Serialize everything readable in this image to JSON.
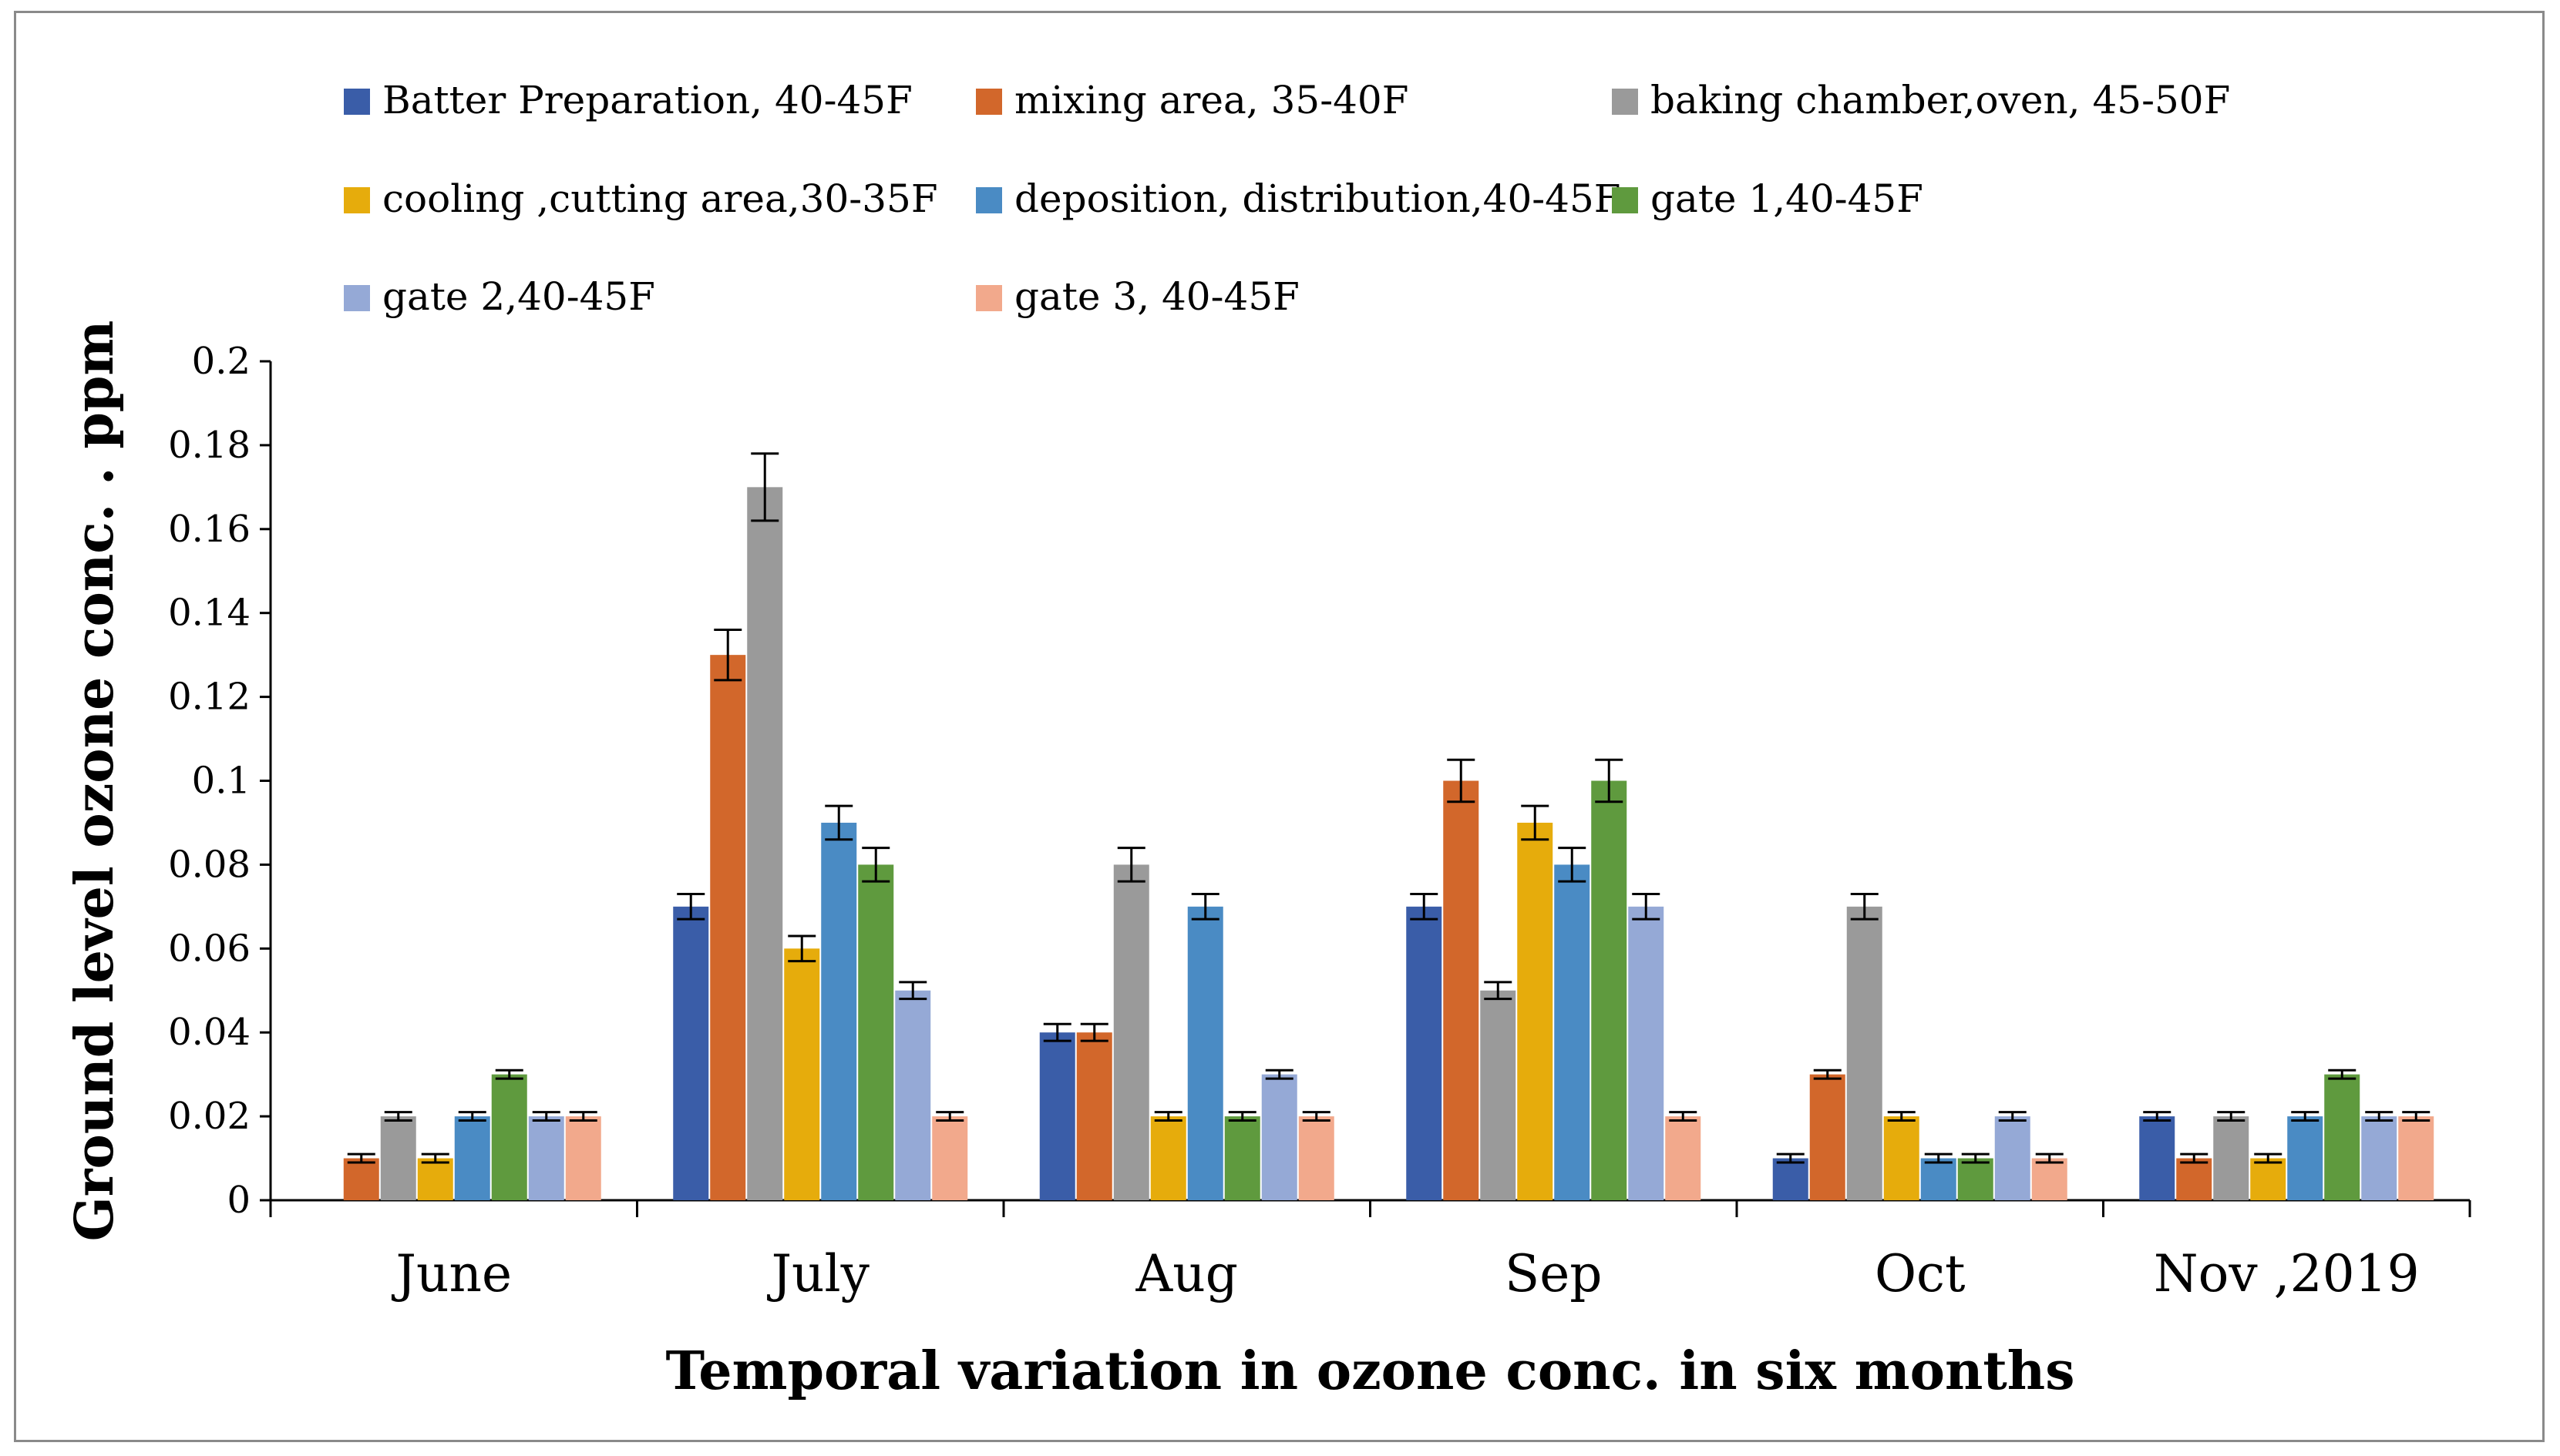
{
  "chart_data": {
    "type": "bar",
    "title": "",
    "xlabel": "Temporal variation in ozone conc. in six months",
    "ylabel": "Ground level  ozone conc. . ppm",
    "ylim": [
      0,
      0.2
    ],
    "yticks": [
      "0",
      "0.02",
      "0.04",
      "0.06",
      "0.08",
      "0.1",
      "0.12",
      "0.14",
      "0.16",
      "0.18",
      "0.2"
    ],
    "legend_position": "top",
    "categories": [
      "June",
      "July",
      "Aug",
      "Sep",
      "Oct",
      "Nov ,2019"
    ],
    "series": [
      {
        "name": "Batter Preparation,  40-45F",
        "color": "#3A5DA8",
        "values": [
          0,
          0.07,
          0.04,
          0.07,
          0.01,
          0.02
        ],
        "errors": [
          0,
          0.003,
          0.002,
          0.003,
          0.001,
          0.001
        ]
      },
      {
        "name": "mixing area, 35-40F",
        "color": "#D2672B",
        "values": [
          0.01,
          0.13,
          0.04,
          0.1,
          0.03,
          0.01
        ],
        "errors": [
          0.001,
          0.006,
          0.002,
          0.005,
          0.001,
          0.001
        ]
      },
      {
        "name": "baking chamber,oven,  45-50F",
        "color": "#9A9A9A",
        "values": [
          0.02,
          0.17,
          0.08,
          0.05,
          0.07,
          0.02
        ],
        "errors": [
          0.001,
          0.008,
          0.004,
          0.002,
          0.003,
          0.001
        ]
      },
      {
        "name": "cooling ,cutting area,30-35F",
        "color": "#E6AC0C",
        "values": [
          0.01,
          0.06,
          0.02,
          0.09,
          0.02,
          0.01
        ],
        "errors": [
          0.001,
          0.003,
          0.001,
          0.004,
          0.001,
          0.001
        ]
      },
      {
        "name": "deposition,  distribution,40-45F",
        "color": "#4A8BC4",
        "values": [
          0.02,
          0.09,
          0.07,
          0.08,
          0.01,
          0.02
        ],
        "errors": [
          0.001,
          0.004,
          0.003,
          0.004,
          0.001,
          0.001
        ]
      },
      {
        "name": "gate 1,40-45F",
        "color": "#5F9A3E",
        "values": [
          0.03,
          0.08,
          0.02,
          0.1,
          0.01,
          0.03
        ],
        "errors": [
          0.001,
          0.004,
          0.001,
          0.005,
          0.001,
          0.001
        ]
      },
      {
        "name": "gate 2,40-45F",
        "color": "#95A9D6",
        "values": [
          0.02,
          0.05,
          0.03,
          0.07,
          0.02,
          0.02
        ],
        "errors": [
          0.001,
          0.002,
          0.001,
          0.003,
          0.001,
          0.001
        ]
      },
      {
        "name": "gate 3, 40-45F",
        "color": "#F2A98C",
        "values": [
          0.02,
          0.02,
          0.02,
          0.02,
          0.01,
          0.02
        ],
        "errors": [
          0.001,
          0.001,
          0.001,
          0.001,
          0.001,
          0.001
        ]
      }
    ]
  }
}
